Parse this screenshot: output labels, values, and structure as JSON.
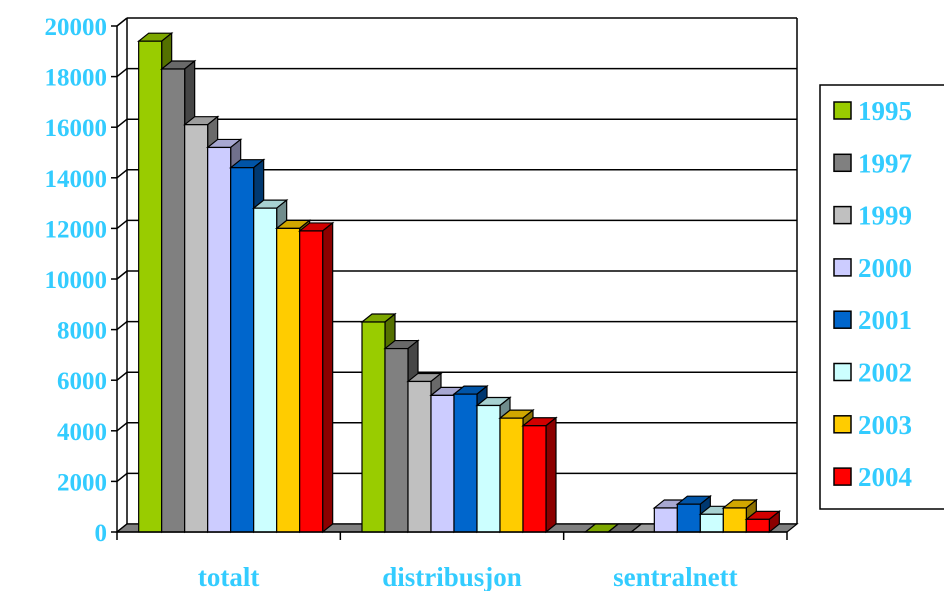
{
  "chart_data": {
    "type": "bar",
    "categories": [
      "totalt",
      "distribusjon",
      "sentralnett"
    ],
    "series": [
      {
        "name": "1995",
        "color": "#99cc00",
        "values": [
          19400,
          8300,
          0
        ]
      },
      {
        "name": "1997",
        "color": "#808080",
        "values": [
          18300,
          7250,
          0
        ]
      },
      {
        "name": "1999",
        "color": "#c0c0c0",
        "values": [
          16100,
          5950,
          0
        ]
      },
      {
        "name": "2000",
        "color": "#ccccff",
        "values": [
          15200,
          5400,
          950
        ]
      },
      {
        "name": "2001",
        "color": "#0066cc",
        "values": [
          14400,
          5450,
          1100
        ]
      },
      {
        "name": "2002",
        "color": "#ccffff",
        "values": [
          12800,
          5000,
          700
        ]
      },
      {
        "name": "2003",
        "color": "#ffcc00",
        "values": [
          12000,
          4500,
          950
        ]
      },
      {
        "name": "2004",
        "color": "#ff0000",
        "values": [
          11900,
          4200,
          500
        ]
      }
    ],
    "ylim": [
      0,
      20000
    ],
    "yticks": [
      "0",
      "2000",
      "4000",
      "6000",
      "8000",
      "10000",
      "12000",
      "14000",
      "16000",
      "18000",
      "20000"
    ],
    "grid": true,
    "legend_position": "right",
    "label_color": "#33ccff"
  }
}
